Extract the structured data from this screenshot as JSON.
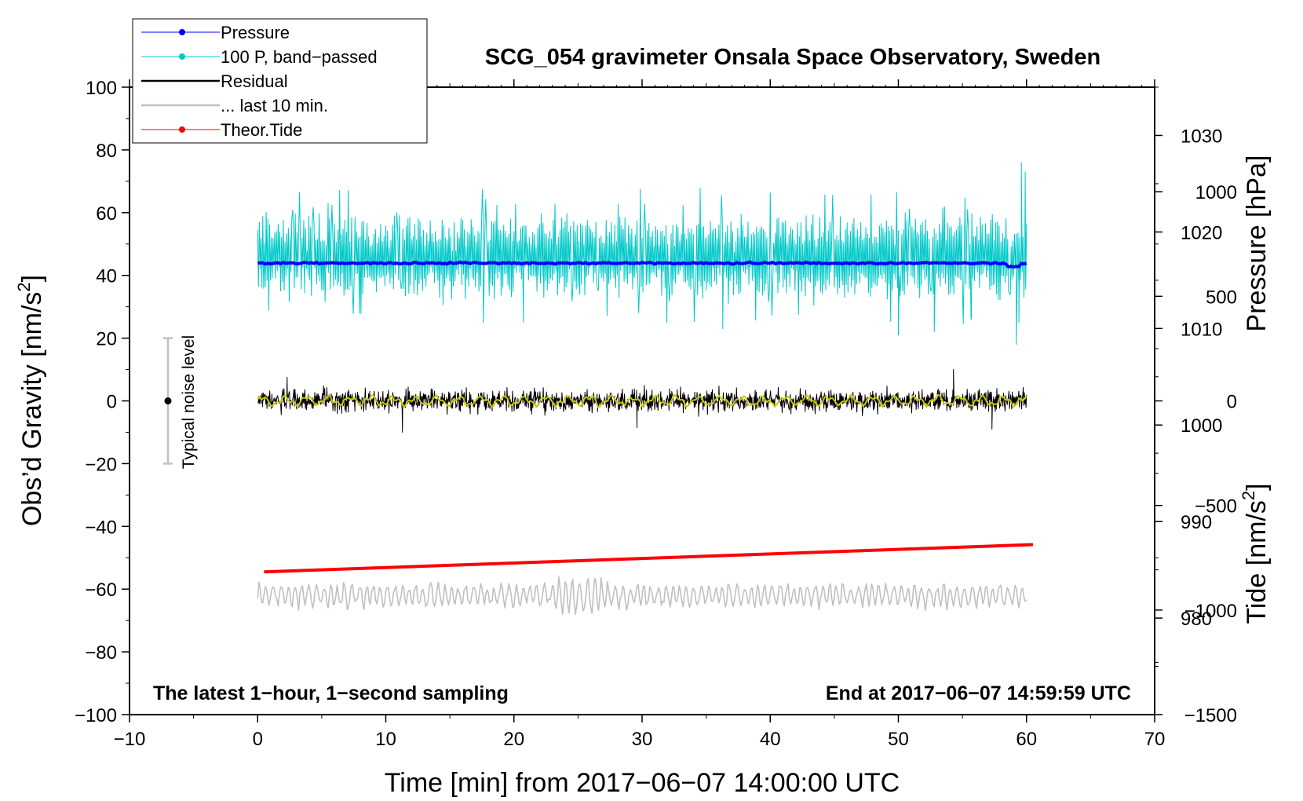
{
  "chart_data": {
    "type": "line",
    "title": "SCG_054 gravimeter Onsala Space Observatory, Sweden",
    "xlabel": "Time [min] from 2017−06−07 14:00:00 UTC",
    "ylabel_left_prefix": "Obs’d Gravity [nm/s",
    "ylabel_left_sup": "2",
    "ylabel_left_suffix": "]",
    "ylabel_right_top": "Pressure [hPa]",
    "ylabel_right_bottom_prefix": "Tide [nm/s",
    "ylabel_right_bottom_sup": "2",
    "ylabel_right_bottom_suffix": "]",
    "xlim": [
      -10,
      70
    ],
    "ylim_left": [
      -100,
      100
    ],
    "ylim_pressure": [
      970,
      1035
    ],
    "ylim_tide": [
      -1500,
      1500
    ],
    "x_ticks": [
      -10,
      0,
      10,
      20,
      30,
      40,
      50,
      60,
      70
    ],
    "x_tick_labels": [
      "−10",
      "0",
      "10",
      "20",
      "30",
      "40",
      "50",
      "60",
      "70"
    ],
    "y_left_ticks": [
      -100,
      -80,
      -60,
      -40,
      -20,
      0,
      20,
      40,
      60,
      80,
      100
    ],
    "y_left_tick_labels": [
      "−100",
      "−80",
      "−60",
      "−40",
      "−20",
      "0",
      "20",
      "40",
      "60",
      "80",
      "100"
    ],
    "pressure_ticks": [
      980,
      990,
      1000,
      1010,
      1020,
      1030
    ],
    "pressure_tick_labels": [
      "980",
      "990",
      "1000",
      "1010",
      "1020",
      "1030"
    ],
    "tide_ticks": [
      -1500,
      -1000,
      -500,
      0,
      500,
      1000
    ],
    "tide_tick_labels": [
      "−1500",
      "−1000",
      "−500",
      "0",
      "500",
      "1000"
    ],
    "legend": [
      {
        "label": "Pressure",
        "color": "#0000ff",
        "marker": true
      },
      {
        "label": "100 P, band−passed",
        "color": "#00c8c8",
        "marker": true
      },
      {
        "label": "Residual",
        "color": "#000000",
        "marker": false
      },
      {
        "label": "... last 10 min.",
        "color": "#c0c0c0",
        "marker": false
      },
      {
        "label": "Theor.Tide",
        "color": "#ff0000",
        "marker": true
      }
    ],
    "series": [
      {
        "name": "Pressure",
        "axis": "left",
        "color": "#0000ff",
        "x_range": [
          0,
          60
        ],
        "mean": 43.9,
        "pattern": "flat with small jitter, slight dip near minute 59"
      },
      {
        "name": "100 P, band−passed",
        "axis": "left",
        "color": "#00c8c8",
        "x_range": [
          0,
          60
        ],
        "mean": 46,
        "min": 18,
        "max": 76,
        "pattern": "high-frequency oscillation, larger excursions near minutes 36, 50, 53, 59"
      },
      {
        "name": "Residual",
        "axis": "left",
        "color": "#000000",
        "x_range": [
          0,
          60
        ],
        "mean": 0,
        "min": -10,
        "max": 10,
        "pattern": "noise band about ±5 nm/s²"
      },
      {
        "name": "Residual smoothed",
        "axis": "left",
        "color": "#c8c800",
        "x_range": [
          0,
          60
        ],
        "mean": 0,
        "pattern": "smoothed residual within about ±2 nm/s²"
      },
      {
        "name": "... last 10 min.",
        "axis": "left",
        "color": "#c0c0c0",
        "x_range": [
          0,
          60
        ],
        "mean": -62,
        "min": -68,
        "max": -51,
        "pattern": "oscillation around -62 nm/s²"
      },
      {
        "name": "Theor.Tide",
        "axis": "left",
        "color": "#ff0000",
        "x": [
          0.5,
          60.5
        ],
        "y": [
          -54.5,
          -45.8
        ]
      }
    ],
    "noise_bar": {
      "label": "Typical noise level",
      "x": -7,
      "center": 0,
      "low": -20,
      "high": 20
    },
    "annotation_left": "The latest 1−hour, 1−second sampling",
    "annotation_right": "End at 2017−06−07 14:59:59 UTC",
    "grid": false
  }
}
